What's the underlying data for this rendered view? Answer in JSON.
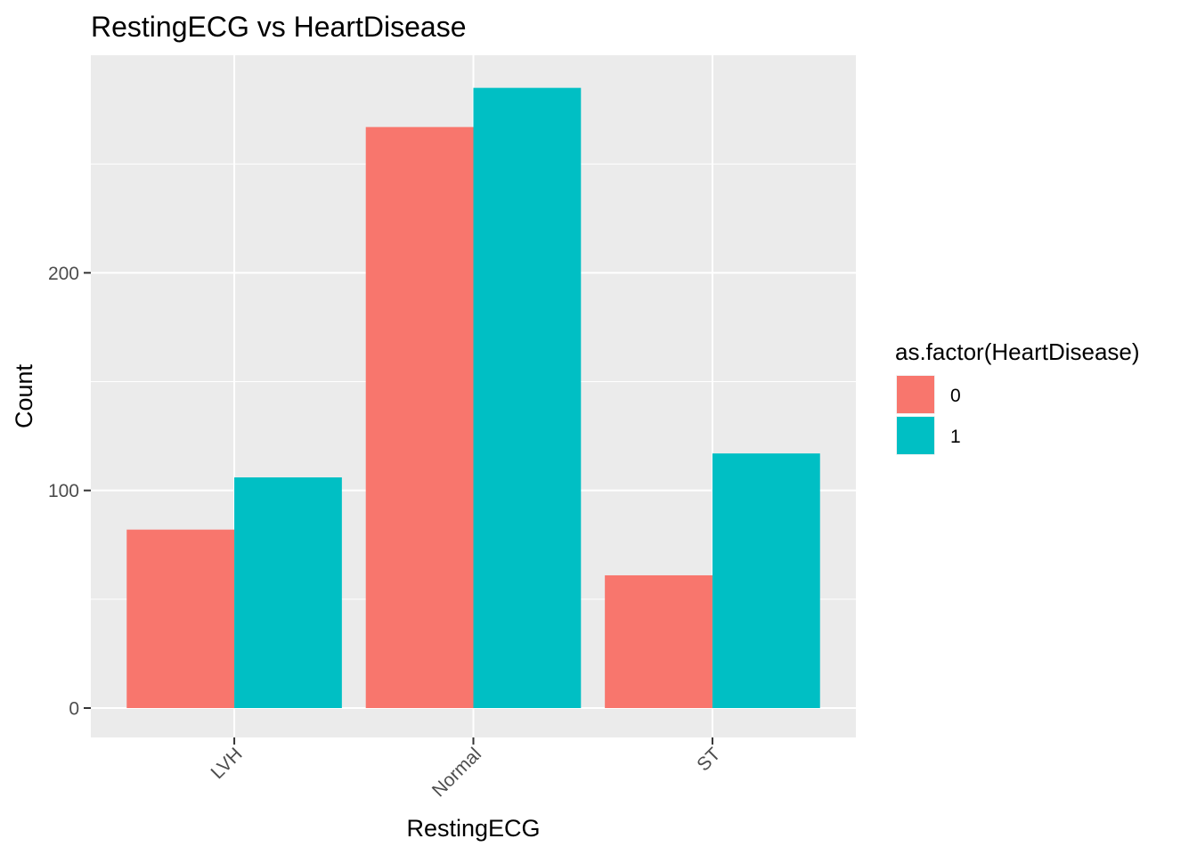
{
  "chart_data": {
    "type": "bar",
    "title": "RestingECG vs HeartDisease",
    "xlabel": "RestingECG",
    "ylabel": "Count",
    "categories": [
      "LVH",
      "Normal",
      "ST"
    ],
    "series": [
      {
        "name": "0",
        "values": [
          82,
          267,
          61
        ]
      },
      {
        "name": "1",
        "values": [
          106,
          285,
          117
        ]
      }
    ],
    "ylim": [
      -13.5,
      300
    ],
    "yticks": [
      0,
      100,
      200
    ],
    "grid": true,
    "legend": {
      "title": "as.factor(HeartDisease)",
      "placement": "right"
    },
    "colors": {
      "series": [
        "#F8766D",
        "#00BFC4"
      ],
      "panel_background": "#EBEBEB",
      "grid_line": "#FFFFFF"
    }
  }
}
